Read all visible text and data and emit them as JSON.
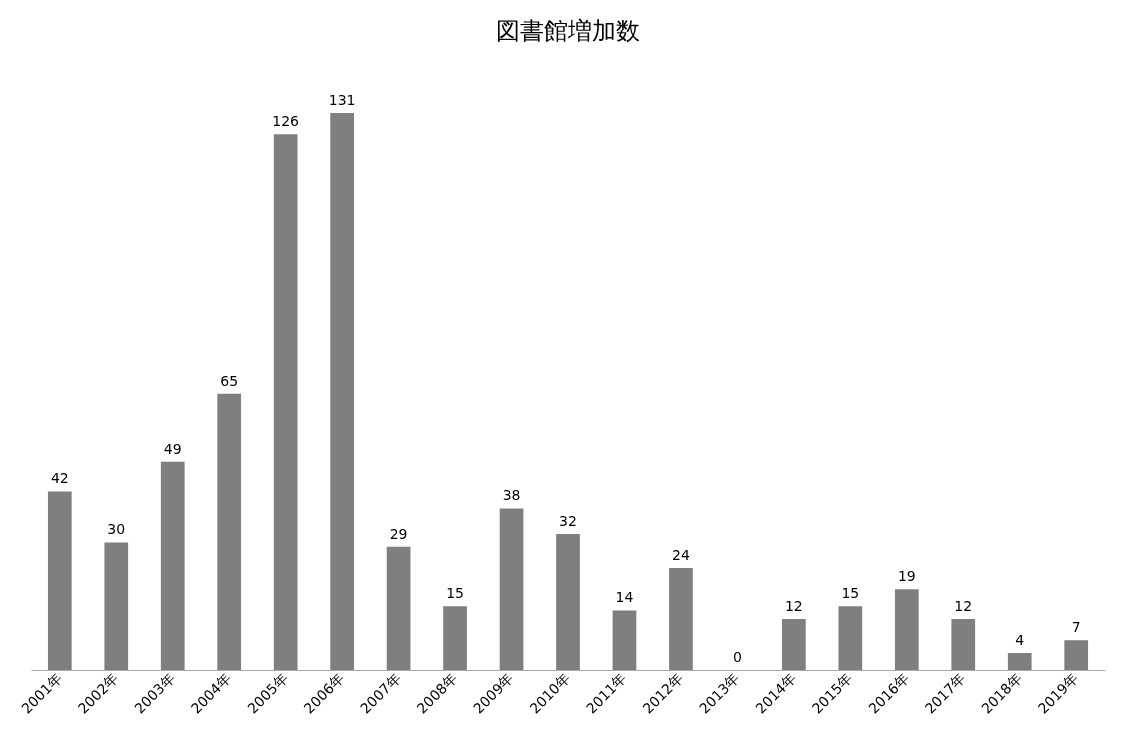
{
  "chart_data": {
    "type": "bar",
    "title": "図書館増加数",
    "categories": [
      "2001年",
      "2002年",
      "2003年",
      "2004年",
      "2005年",
      "2006年",
      "2007年",
      "2008年",
      "2009年",
      "2010年",
      "2011年",
      "2012年",
      "2013年",
      "2014年",
      "2015年",
      "2016年",
      "2017年",
      "2018年",
      "2019年"
    ],
    "values": [
      42,
      30,
      49,
      65,
      126,
      131,
      29,
      15,
      38,
      32,
      14,
      24,
      0,
      12,
      15,
      19,
      12,
      4,
      7
    ],
    "color": "#7f7f7f",
    "data_labels": true
  }
}
